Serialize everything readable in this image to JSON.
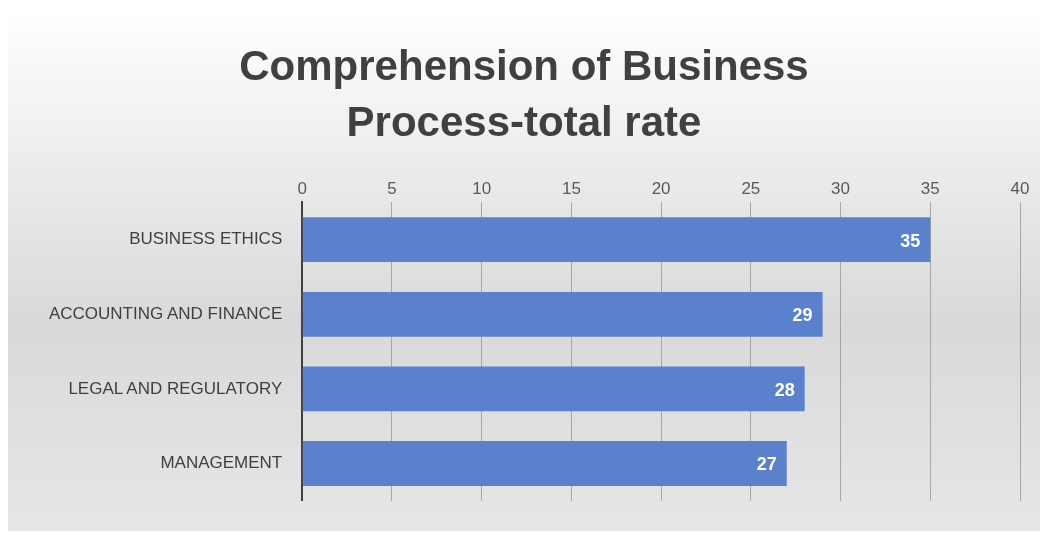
{
  "chart_data": {
    "type": "bar",
    "orientation": "horizontal",
    "title": "Comprehension of Business Process-total rate",
    "categories": [
      "BUSINESS ETHICS",
      "ACCOUNTING AND FINANCE",
      "LEGAL AND REGULATORY",
      "MANAGEMENT"
    ],
    "values": [
      35,
      29,
      28,
      27
    ],
    "color": "#5b80cc",
    "xlim": [
      0,
      40
    ],
    "xticks": [
      0,
      5,
      10,
      15,
      20,
      25,
      30,
      35,
      40
    ],
    "grid": "x",
    "data_labels": true,
    "legend": false
  }
}
